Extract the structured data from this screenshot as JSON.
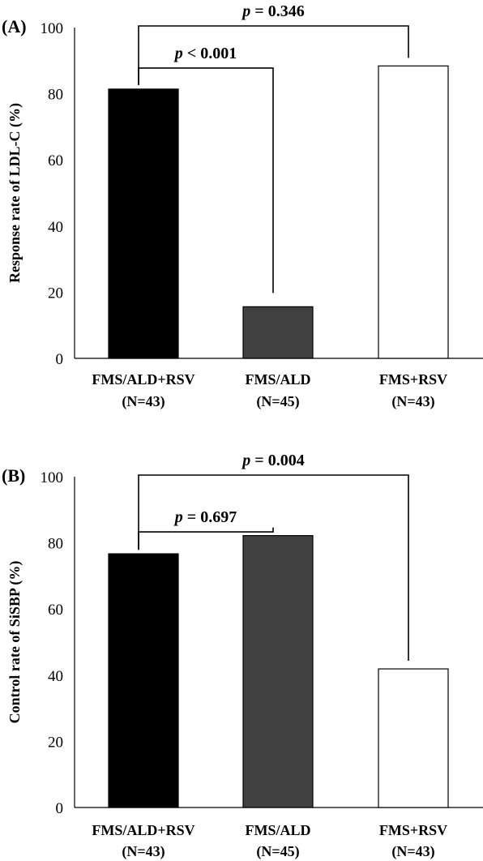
{
  "chart_data": [
    {
      "type": "bar",
      "panel_label": "(A)",
      "ylabel": "Response rate of LDL-C (%)",
      "ylim": [
        0,
        100
      ],
      "yticks": [
        0,
        20,
        40,
        60,
        80,
        100
      ],
      "categories": [
        {
          "name": "FMS/ALD+RSV",
          "n": "(N=43)"
        },
        {
          "name": "FMS/ALD",
          "n": "(N=45)"
        },
        {
          "name": "FMS+RSV",
          "n": "(N=43)"
        }
      ],
      "values": [
        81.4,
        15.6,
        88.4
      ],
      "colors": [
        "#000000",
        "#404040",
        "#ffffff"
      ],
      "comparisons": [
        {
          "from": 0,
          "to": 1,
          "p": "p",
          "text": " < 0.001",
          "level": 1
        },
        {
          "from": 0,
          "to": 2,
          "p": "p",
          "text": " = 0.346",
          "level": 2
        }
      ]
    },
    {
      "type": "bar",
      "panel_label": "(B)",
      "ylabel": "Control rate of SiSBP (%)",
      "ylim": [
        0,
        100
      ],
      "yticks": [
        0,
        20,
        40,
        60,
        80,
        100
      ],
      "categories": [
        {
          "name": "FMS/ALD+RSV",
          "n": "(N=43)"
        },
        {
          "name": "FMS/ALD",
          "n": "(N=45)"
        },
        {
          "name": "FMS+RSV",
          "n": "(N=43)"
        }
      ],
      "values": [
        76.7,
        82.2,
        41.9
      ],
      "colors": [
        "#000000",
        "#404040",
        "#ffffff"
      ],
      "comparisons": [
        {
          "from": 0,
          "to": 1,
          "p": "p",
          "text": " = 0.697",
          "level": 1
        },
        {
          "from": 0,
          "to": 2,
          "p": "p",
          "text": " = 0.004",
          "level": 2
        }
      ]
    }
  ]
}
